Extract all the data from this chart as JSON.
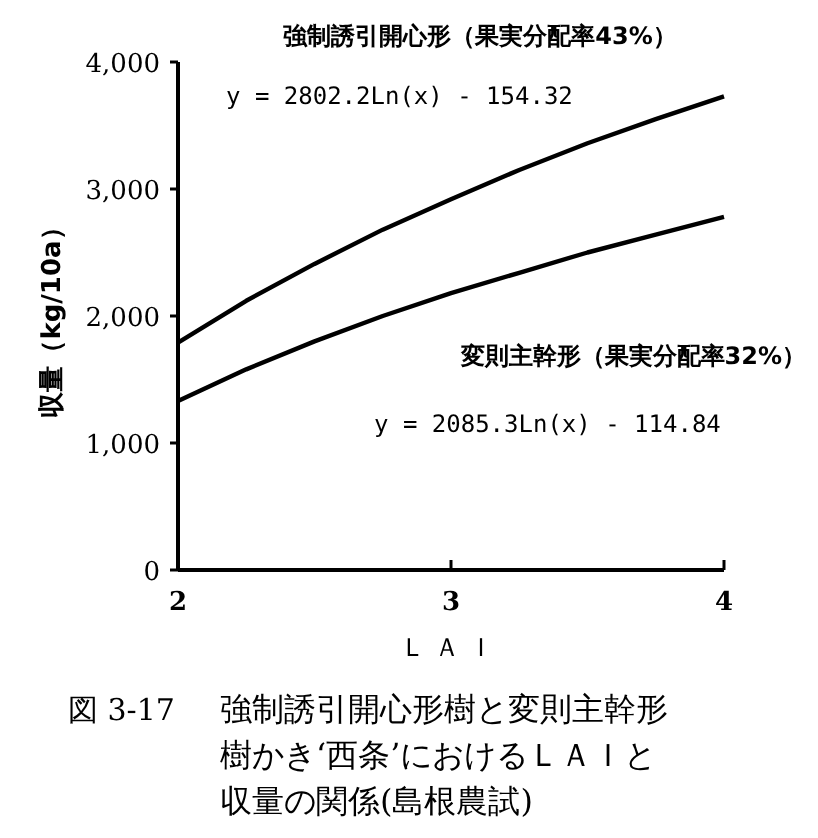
{
  "chart_data": {
    "type": "line",
    "xlabel": "ＬＡＩ",
    "ylabel": "収量（kg/10a）",
    "x": [
      2,
      2.25,
      2.5,
      2.75,
      3,
      3.25,
      3.5,
      3.75,
      4
    ],
    "series": [
      {
        "name": "強制誘引開心形（果実分配率43%）",
        "color": "#000000",
        "values": [
          1790,
          2120,
          2410,
          2680,
          2920,
          3150,
          3360,
          3550,
          3730
        ]
      },
      {
        "name": "変則主幹形（果実分配率32%）",
        "color": "#000000",
        "values": [
          1330,
          1580,
          1800,
          2000,
          2180,
          2340,
          2500,
          2640,
          2780
        ]
      }
    ],
    "xlim": [
      2,
      4
    ],
    "xticks": [
      2,
      3,
      4
    ],
    "ylim": [
      0,
      4000
    ],
    "yticks": [
      {
        "value": 0,
        "label": "0"
      },
      {
        "value": 1000,
        "label": "1,000"
      },
      {
        "value": 2000,
        "label": "2,000"
      },
      {
        "value": 3000,
        "label": "3,000"
      },
      {
        "value": 4000,
        "label": "4,000"
      }
    ],
    "annotations": [
      "y = 2802.2Ln(x) - 154.32",
      "y = 2085.3Ln(x) - 114.84",
      "図 3-17",
      "強制誘引開心形樹と変則主幹形樹かき‘西条’におけるＬＡＩと収量の関係(島根農試)"
    ],
    "grid": false,
    "marker": "none",
    "line_style": "solid"
  }
}
